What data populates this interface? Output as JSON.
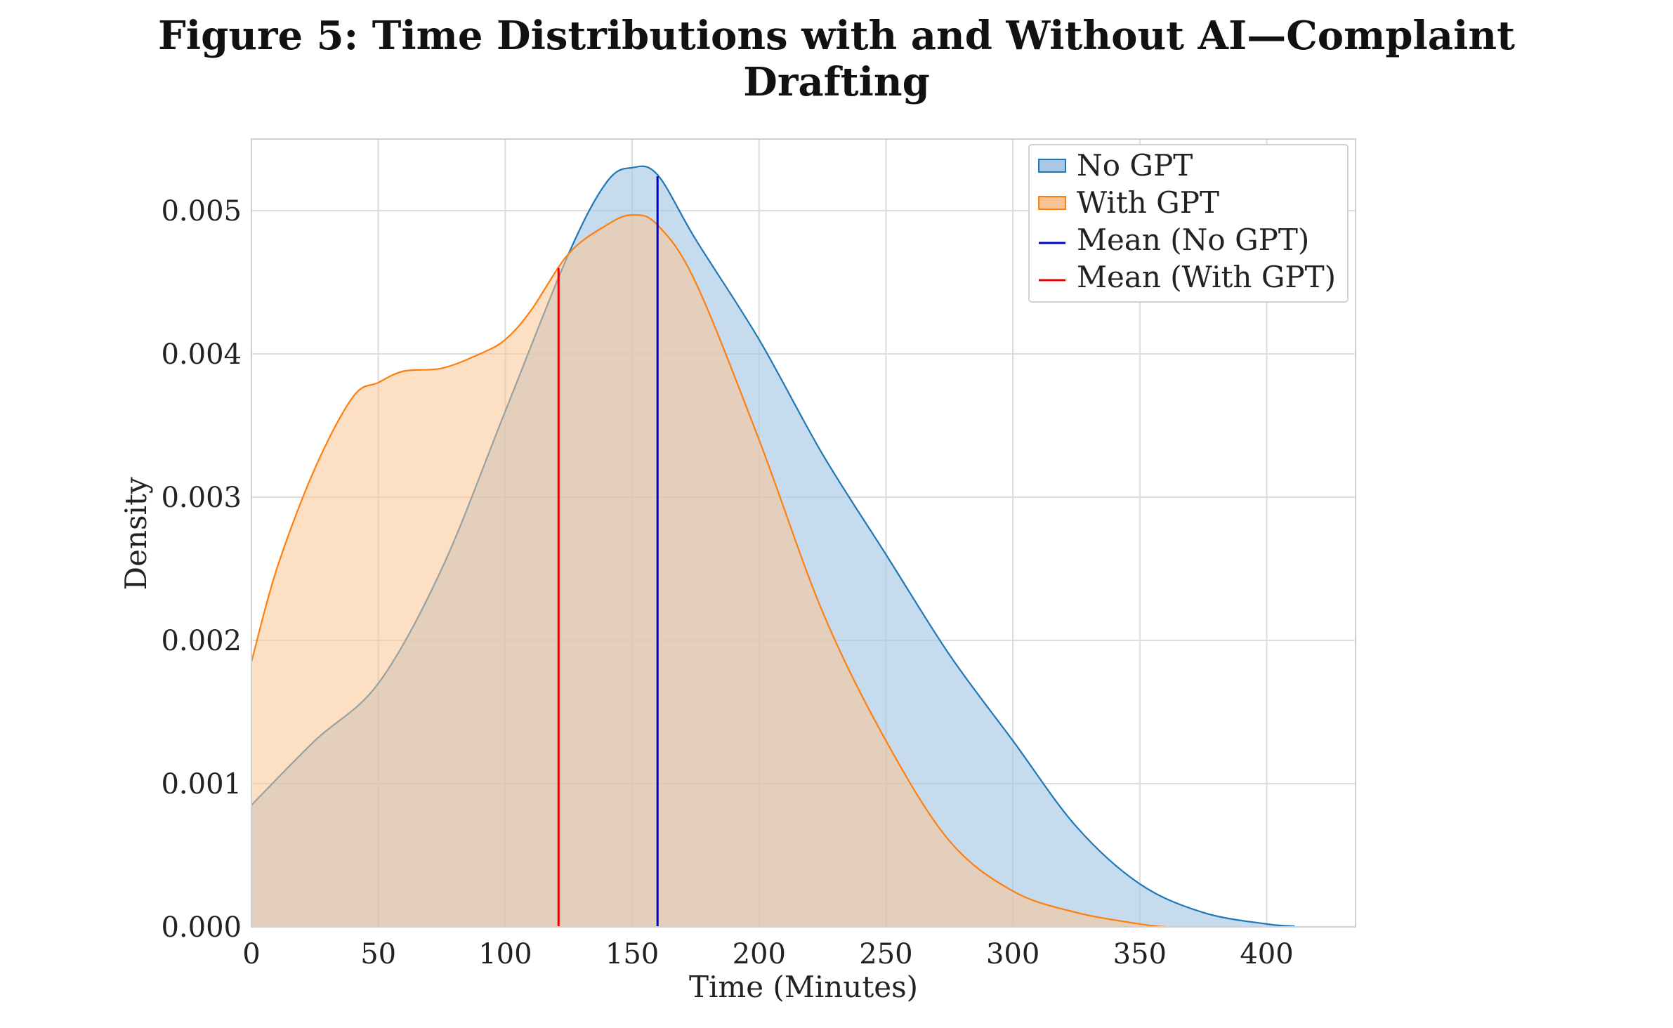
{
  "figure": {
    "title_line1": "Figure 5: Time Distributions with and Without AI—Complaint",
    "title_line2": "Drafting"
  },
  "chart_data": {
    "type": "area",
    "title": "Figure 5: Time Distributions with and Without AI—Complaint Drafting",
    "xlabel": "Time (Minutes)",
    "ylabel": "Density",
    "xlim": [
      0,
      435
    ],
    "ylim": [
      0,
      0.0055
    ],
    "xticks": [
      0,
      50,
      100,
      150,
      200,
      250,
      300,
      350,
      400
    ],
    "xtick_labels": [
      "0",
      "50",
      "100",
      "150",
      "200",
      "250",
      "300",
      "350",
      "400"
    ],
    "yticks": [
      0,
      0.001,
      0.002,
      0.003,
      0.004,
      0.005
    ],
    "ytick_labels": [
      "0.000",
      "0.001",
      "0.002",
      "0.003",
      "0.004",
      "0.005"
    ],
    "grid": true,
    "legend_position": "top-right",
    "series": [
      {
        "name": "No GPT",
        "kind": "density",
        "color": "#1f77b4",
        "fill": "#a8c8e4",
        "x": [
          0,
          25,
          50,
          75,
          100,
          125,
          140,
          150,
          160,
          175,
          200,
          225,
          250,
          275,
          300,
          325,
          350,
          375,
          400,
          411
        ],
        "y": [
          0.00085,
          0.0013,
          0.0017,
          0.0025,
          0.0036,
          0.0047,
          0.0052,
          0.0053,
          0.00525,
          0.0048,
          0.0041,
          0.0033,
          0.0026,
          0.0019,
          0.0013,
          0.0007,
          0.0003,
          0.0001,
          2e-05,
          5e-06
        ]
      },
      {
        "name": "With GPT",
        "kind": "density",
        "color": "#ff7f0e",
        "fill": "#fbc494",
        "x": [
          0,
          10,
          25,
          40,
          50,
          60,
          75,
          90,
          100,
          110,
          125,
          140,
          150,
          160,
          175,
          200,
          225,
          250,
          275,
          300,
          325,
          350,
          360
        ],
        "y": [
          0.00185,
          0.0025,
          0.0032,
          0.0037,
          0.0038,
          0.00388,
          0.0039,
          0.004,
          0.0041,
          0.0043,
          0.0047,
          0.0049,
          0.00497,
          0.0049,
          0.0045,
          0.0034,
          0.0022,
          0.0013,
          0.0006,
          0.00025,
          0.0001,
          2e-05,
          0.0
        ]
      }
    ],
    "mean_lines": [
      {
        "name": "Mean (No GPT)",
        "x": 160,
        "y_top": 0.00524,
        "color": "#0000cc"
      },
      {
        "name": "Mean (With GPT)",
        "x": 121,
        "y_top": 0.0046,
        "color": "#e80000"
      }
    ]
  }
}
